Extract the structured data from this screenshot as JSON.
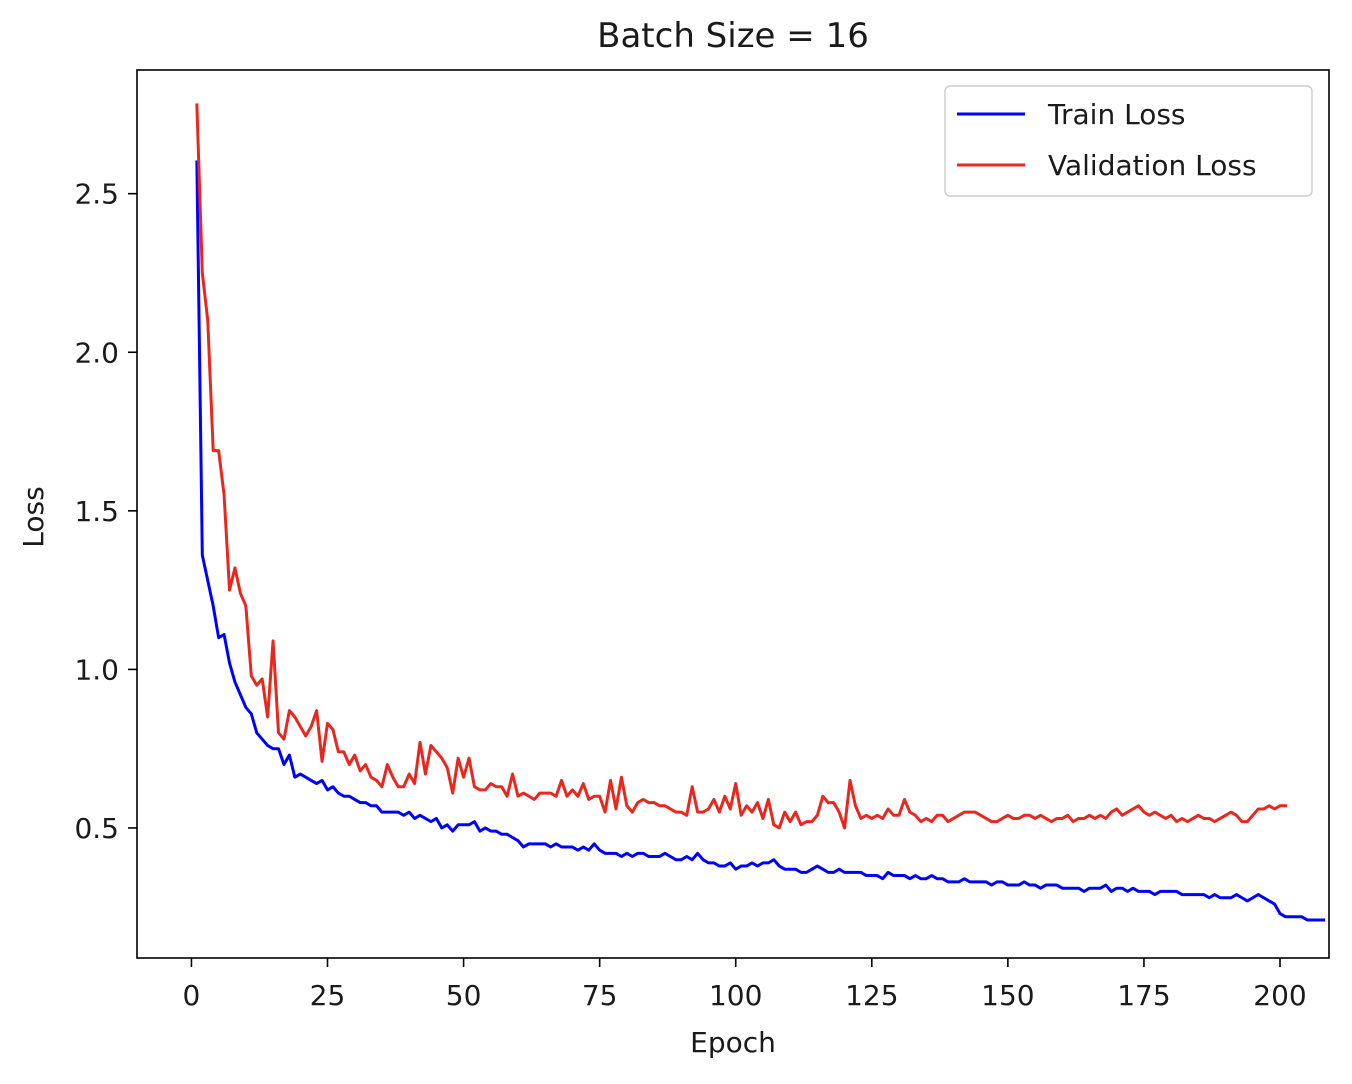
{
  "chart_data": {
    "type": "line",
    "title": "Batch Size = 16",
    "xlabel": "Epoch",
    "ylabel": "Loss",
    "xlim": [
      -10,
      209
    ],
    "ylim": [
      0.09,
      2.89
    ],
    "grid": false,
    "legend_position": "top-right",
    "xticks": [
      0,
      25,
      50,
      75,
      100,
      125,
      150,
      175,
      200
    ],
    "yticks": [
      0.5,
      1.0,
      1.5,
      2.0,
      2.5
    ],
    "xtick_labels": [
      "0",
      "25",
      "50",
      "75",
      "100",
      "125",
      "150",
      "175",
      "200"
    ],
    "ytick_labels": [
      "0.5",
      "1.0",
      "1.5",
      "2.0",
      "2.5"
    ],
    "x_start": 1,
    "series": [
      {
        "name": "Train Loss",
        "color": "#0000ff",
        "values": [
          2.6,
          1.36,
          1.28,
          1.2,
          1.1,
          1.11,
          1.02,
          0.96,
          0.92,
          0.88,
          0.86,
          0.8,
          0.78,
          0.76,
          0.75,
          0.75,
          0.7,
          0.73,
          0.66,
          0.67,
          0.66,
          0.65,
          0.64,
          0.65,
          0.62,
          0.63,
          0.61,
          0.6,
          0.6,
          0.59,
          0.58,
          0.58,
          0.57,
          0.57,
          0.55,
          0.55,
          0.55,
          0.55,
          0.54,
          0.55,
          0.53,
          0.54,
          0.53,
          0.52,
          0.53,
          0.5,
          0.51,
          0.49,
          0.51,
          0.51,
          0.51,
          0.52,
          0.49,
          0.5,
          0.49,
          0.49,
          0.48,
          0.48,
          0.47,
          0.46,
          0.44,
          0.45,
          0.45,
          0.45,
          0.45,
          0.44,
          0.45,
          0.44,
          0.44,
          0.44,
          0.43,
          0.44,
          0.43,
          0.45,
          0.43,
          0.42,
          0.42,
          0.42,
          0.41,
          0.42,
          0.41,
          0.42,
          0.42,
          0.41,
          0.41,
          0.41,
          0.42,
          0.41,
          0.4,
          0.4,
          0.41,
          0.4,
          0.42,
          0.4,
          0.39,
          0.39,
          0.38,
          0.38,
          0.39,
          0.37,
          0.38,
          0.38,
          0.39,
          0.38,
          0.39,
          0.39,
          0.4,
          0.38,
          0.37,
          0.37,
          0.37,
          0.36,
          0.36,
          0.37,
          0.38,
          0.37,
          0.36,
          0.36,
          0.37,
          0.36,
          0.36,
          0.36,
          0.36,
          0.35,
          0.35,
          0.35,
          0.34,
          0.36,
          0.35,
          0.35,
          0.35,
          0.34,
          0.35,
          0.34,
          0.34,
          0.35,
          0.34,
          0.34,
          0.33,
          0.33,
          0.33,
          0.34,
          0.33,
          0.33,
          0.33,
          0.33,
          0.32,
          0.33,
          0.33,
          0.32,
          0.32,
          0.32,
          0.33,
          0.32,
          0.32,
          0.31,
          0.32,
          0.32,
          0.32,
          0.31,
          0.31,
          0.31,
          0.31,
          0.3,
          0.31,
          0.31,
          0.31,
          0.32,
          0.3,
          0.31,
          0.31,
          0.3,
          0.31,
          0.3,
          0.3,
          0.3,
          0.29,
          0.3,
          0.3,
          0.3,
          0.3,
          0.29,
          0.29,
          0.29,
          0.29,
          0.29,
          0.28,
          0.29,
          0.28,
          0.28,
          0.28,
          0.29,
          0.28,
          0.27,
          0.28,
          0.29,
          0.28,
          0.27,
          0.26,
          0.23,
          0.22,
          0.22,
          0.22,
          0.22,
          0.21,
          0.21,
          0.21,
          0.21
        ]
      },
      {
        "name": "Validation Loss",
        "color": "#e8281e",
        "values": [
          2.78,
          2.25,
          2.1,
          1.69,
          1.69,
          1.55,
          1.25,
          1.32,
          1.24,
          1.2,
          0.98,
          0.95,
          0.97,
          0.85,
          1.09,
          0.8,
          0.78,
          0.87,
          0.85,
          0.82,
          0.79,
          0.82,
          0.87,
          0.71,
          0.83,
          0.81,
          0.74,
          0.74,
          0.7,
          0.73,
          0.68,
          0.7,
          0.66,
          0.65,
          0.63,
          0.7,
          0.66,
          0.63,
          0.63,
          0.67,
          0.64,
          0.77,
          0.67,
          0.76,
          0.74,
          0.72,
          0.69,
          0.61,
          0.72,
          0.66,
          0.72,
          0.63,
          0.62,
          0.62,
          0.64,
          0.63,
          0.63,
          0.6,
          0.67,
          0.6,
          0.61,
          0.6,
          0.59,
          0.61,
          0.61,
          0.61,
          0.6,
          0.65,
          0.6,
          0.62,
          0.6,
          0.64,
          0.59,
          0.6,
          0.6,
          0.55,
          0.65,
          0.56,
          0.66,
          0.57,
          0.55,
          0.58,
          0.59,
          0.58,
          0.58,
          0.57,
          0.57,
          0.56,
          0.55,
          0.55,
          0.54,
          0.63,
          0.55,
          0.55,
          0.56,
          0.59,
          0.55,
          0.6,
          0.56,
          0.64,
          0.54,
          0.57,
          0.55,
          0.58,
          0.53,
          0.59,
          0.51,
          0.5,
          0.55,
          0.52,
          0.55,
          0.51,
          0.52,
          0.52,
          0.54,
          0.6,
          0.58,
          0.58,
          0.55,
          0.5,
          0.65,
          0.57,
          0.53,
          0.54,
          0.53,
          0.54,
          0.53,
          0.56,
          0.54,
          0.54,
          0.59,
          0.55,
          0.54,
          0.52,
          0.53,
          0.52,
          0.54,
          0.54,
          0.52,
          0.53,
          0.54,
          0.55,
          0.55,
          0.55,
          0.54,
          0.53,
          0.52,
          0.52,
          0.53,
          0.54,
          0.53,
          0.53,
          0.54,
          0.54,
          0.53,
          0.54,
          0.53,
          0.52,
          0.53,
          0.53,
          0.54,
          0.52,
          0.53,
          0.53,
          0.54,
          0.53,
          0.54,
          0.53,
          0.55,
          0.56,
          0.54,
          0.55,
          0.56,
          0.57,
          0.55,
          0.54,
          0.55,
          0.54,
          0.53,
          0.54,
          0.52,
          0.53,
          0.52,
          0.53,
          0.54,
          0.53,
          0.53,
          0.52,
          0.53,
          0.54,
          0.55,
          0.54,
          0.52,
          0.52,
          0.54,
          0.56,
          0.56,
          0.57,
          0.56,
          0.57,
          0.57
        ]
      }
    ]
  }
}
